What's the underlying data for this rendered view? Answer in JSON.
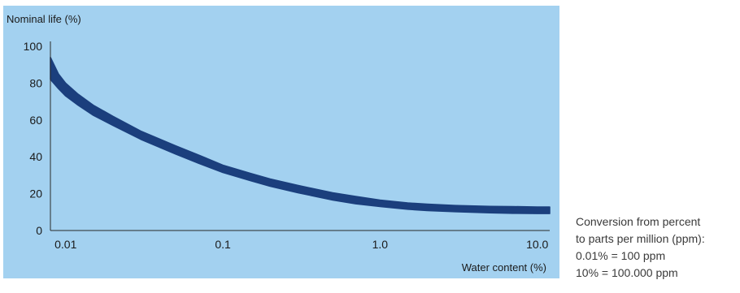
{
  "chart_data": {
    "type": "area",
    "title": "",
    "ylabel": "Nominal life (%)",
    "xlabel": "Water content (%)",
    "x_scale": "log",
    "xlim": [
      0.008,
      12
    ],
    "ylim": [
      0,
      100
    ],
    "grid": false,
    "x_ticks": [
      {
        "value": 0.01,
        "label": "0.01"
      },
      {
        "value": 0.1,
        "label": "0.1"
      },
      {
        "value": 1.0,
        "label": "1.0"
      },
      {
        "value": 10.0,
        "label": "10.0"
      }
    ],
    "y_ticks": [
      {
        "value": 0,
        "label": "0"
      },
      {
        "value": 20,
        "label": "20"
      },
      {
        "value": 40,
        "label": "40"
      },
      {
        "value": 60,
        "label": "60"
      },
      {
        "value": 80,
        "label": "80"
      },
      {
        "value": 100,
        "label": "100"
      }
    ],
    "band": {
      "color": "#1b3f7d",
      "upper": [
        {
          "x": 0.008,
          "y": 94
        },
        {
          "x": 0.009,
          "y": 85
        },
        {
          "x": 0.01,
          "y": 80
        },
        {
          "x": 0.012,
          "y": 74
        },
        {
          "x": 0.015,
          "y": 68
        },
        {
          "x": 0.02,
          "y": 62
        },
        {
          "x": 0.03,
          "y": 54
        },
        {
          "x": 0.05,
          "y": 46
        },
        {
          "x": 0.07,
          "y": 41
        },
        {
          "x": 0.1,
          "y": 35.5
        },
        {
          "x": 0.15,
          "y": 31
        },
        {
          "x": 0.2,
          "y": 28
        },
        {
          "x": 0.3,
          "y": 24.5
        },
        {
          "x": 0.5,
          "y": 20.5
        },
        {
          "x": 0.7,
          "y": 18.5
        },
        {
          "x": 1.0,
          "y": 16.5
        },
        {
          "x": 1.5,
          "y": 15
        },
        {
          "x": 2.0,
          "y": 14.3
        },
        {
          "x": 3.0,
          "y": 13.6
        },
        {
          "x": 5.0,
          "y": 13.1
        },
        {
          "x": 7.0,
          "y": 13
        },
        {
          "x": 10.0,
          "y": 12.8
        },
        {
          "x": 12.0,
          "y": 12.8
        }
      ],
      "lower": [
        {
          "x": 0.008,
          "y": 82
        },
        {
          "x": 0.009,
          "y": 77
        },
        {
          "x": 0.01,
          "y": 73
        },
        {
          "x": 0.012,
          "y": 68
        },
        {
          "x": 0.015,
          "y": 62.5
        },
        {
          "x": 0.02,
          "y": 57
        },
        {
          "x": 0.03,
          "y": 49.5
        },
        {
          "x": 0.05,
          "y": 41.5
        },
        {
          "x": 0.07,
          "y": 36.5
        },
        {
          "x": 0.1,
          "y": 31.5
        },
        {
          "x": 0.15,
          "y": 27
        },
        {
          "x": 0.2,
          "y": 24
        },
        {
          "x": 0.3,
          "y": 20.5
        },
        {
          "x": 0.5,
          "y": 16.5
        },
        {
          "x": 0.7,
          "y": 14.5
        },
        {
          "x": 1.0,
          "y": 13
        },
        {
          "x": 1.5,
          "y": 11.5
        },
        {
          "x": 2.0,
          "y": 10.8
        },
        {
          "x": 3.0,
          "y": 10.2
        },
        {
          "x": 5.0,
          "y": 9.6
        },
        {
          "x": 7.0,
          "y": 9.3
        },
        {
          "x": 10.0,
          "y": 9.2
        },
        {
          "x": 12.0,
          "y": 9.2
        }
      ]
    },
    "colors": {
      "background": "#a3d1f0",
      "band": "#1b3f7d",
      "axis": "#2a2a2a",
      "text": "#1a1a1a"
    }
  },
  "conversion_note": {
    "line1": "Conversion from percent",
    "line2": "to parts per million (ppm):",
    "line3": "0.01% = 100 ppm",
    "line4": "10% = 100.000 ppm"
  }
}
